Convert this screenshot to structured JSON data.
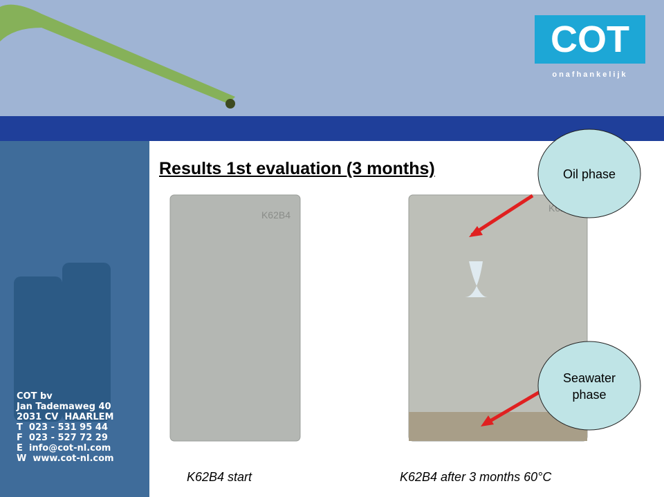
{
  "logo": {
    "name": "COT",
    "tagline": "onafhankelijk"
  },
  "title": "Results 1st evaluation (3 months)",
  "contact": [
    "COT bv",
    "Jan Tademaweg 40",
    "2031 CV  HAARLEM",
    "T  023 - 531 95 44",
    "F  023 - 527 72 29",
    "E  info@cot-nl.com",
    "W  www.cot-nl.com"
  ],
  "panels": [
    {
      "label": "K62B4",
      "caption": "K62B4 start"
    },
    {
      "label": "K62B4",
      "caption": "K62B4 after 3 months 60°C"
    }
  ],
  "callouts": [
    "Oil phase",
    "Seawater phase"
  ]
}
